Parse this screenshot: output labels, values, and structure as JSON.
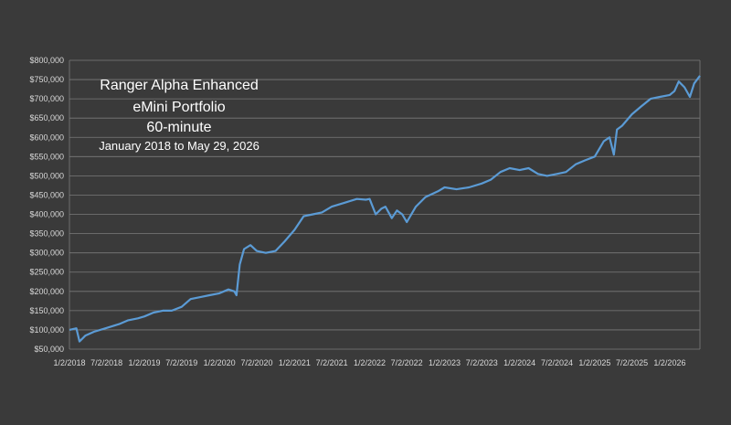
{
  "chart_data": {
    "type": "line",
    "title_lines": [
      "Ranger Alpha Enhanced",
      "eMini Portfolio",
      "60-minute",
      "January 2018 to May 29, 2026"
    ],
    "xlabel": "",
    "ylabel": "",
    "ylim": [
      50000,
      800000
    ],
    "y_ticks": [
      50000,
      100000,
      150000,
      200000,
      250000,
      300000,
      350000,
      400000,
      450000,
      500000,
      550000,
      600000,
      650000,
      700000,
      750000,
      800000
    ],
    "y_tick_labels": [
      "$50,000",
      "$100,000",
      "$150,000",
      "$200,000",
      "$250,000",
      "$300,000",
      "$350,000",
      "$400,000",
      "$450,000",
      "$500,000",
      "$550,000",
      "$600,000",
      "$650,000",
      "$700,000",
      "$750,000",
      "$800,000"
    ],
    "x_range": [
      "2018-01-02",
      "2026-05-29"
    ],
    "x_ticks": [
      "2018-01-02",
      "2018-07-02",
      "2019-01-02",
      "2019-07-02",
      "2020-01-02",
      "2020-07-02",
      "2021-01-02",
      "2021-07-02",
      "2022-01-02",
      "2022-07-02",
      "2023-01-02",
      "2023-07-02",
      "2024-01-02",
      "2024-07-02",
      "2025-01-02",
      "2025-07-02",
      "2026-01-02"
    ],
    "x_tick_labels": [
      "1/2/2018",
      "7/2/2018",
      "1/2/2019",
      "7/2/2019",
      "1/2/2020",
      "7/2/2020",
      "1/2/2021",
      "7/2/2021",
      "1/2/2022",
      "7/2/2022",
      "1/2/2023",
      "7/2/2023",
      "1/2/2024",
      "7/2/2024",
      "1/2/2025",
      "7/2/2025",
      "1/2/2026"
    ],
    "grid": "horizontal",
    "line_color": "#5b9bd5",
    "gridline_color": "#7a7a7a",
    "background_color": "#3a3a3a",
    "series": [
      {
        "x": [
          "2018-01-02",
          "2018-02-05",
          "2018-02-20",
          "2018-03-20",
          "2018-05-01",
          "2018-07-02",
          "2018-09-01",
          "2018-10-15",
          "2018-12-01",
          "2019-01-02",
          "2019-02-15",
          "2019-04-01",
          "2019-05-15",
          "2019-07-02",
          "2019-08-15",
          "2019-10-01",
          "2019-11-15",
          "2020-01-02",
          "2020-02-15",
          "2020-03-15",
          "2020-03-25",
          "2020-04-10",
          "2020-05-01",
          "2020-06-01",
          "2020-07-02",
          "2020-08-15",
          "2020-10-01",
          "2020-11-15",
          "2021-01-02",
          "2021-02-15",
          "2021-04-01",
          "2021-05-15",
          "2021-07-02",
          "2021-09-01",
          "2021-11-01",
          "2021-12-15",
          "2022-01-02",
          "2022-02-01",
          "2022-03-01",
          "2022-03-20",
          "2022-04-20",
          "2022-05-15",
          "2022-06-10",
          "2022-07-02",
          "2022-08-15",
          "2022-10-01",
          "2022-12-01",
          "2023-01-02",
          "2023-03-01",
          "2023-05-01",
          "2023-07-02",
          "2023-08-15",
          "2023-10-01",
          "2023-11-15",
          "2024-01-02",
          "2024-02-15",
          "2024-04-01",
          "2024-05-15",
          "2024-07-02",
          "2024-08-15",
          "2024-10-01",
          "2024-11-15",
          "2025-01-02",
          "2025-02-15",
          "2025-03-15",
          "2025-04-05",
          "2025-04-20",
          "2025-05-15",
          "2025-07-02",
          "2025-08-15",
          "2025-10-01",
          "2025-11-15",
          "2026-01-02",
          "2026-01-25",
          "2026-02-15",
          "2026-03-15",
          "2026-04-10",
          "2026-05-01",
          "2026-05-29"
        ],
        "values": [
          100000,
          104000,
          70000,
          85000,
          95000,
          105000,
          115000,
          125000,
          130000,
          135000,
          145000,
          150000,
          150000,
          160000,
          180000,
          185000,
          190000,
          195000,
          205000,
          200000,
          190000,
          270000,
          310000,
          320000,
          305000,
          300000,
          305000,
          330000,
          360000,
          395000,
          400000,
          405000,
          420000,
          430000,
          440000,
          438000,
          440000,
          400000,
          415000,
          420000,
          390000,
          410000,
          400000,
          380000,
          420000,
          445000,
          460000,
          470000,
          465000,
          470000,
          480000,
          490000,
          510000,
          520000,
          515000,
          520000,
          505000,
          500000,
          505000,
          510000,
          530000,
          540000,
          550000,
          590000,
          600000,
          555000,
          620000,
          630000,
          660000,
          680000,
          700000,
          705000,
          710000,
          720000,
          745000,
          730000,
          705000,
          740000,
          760000
        ]
      }
    ]
  }
}
